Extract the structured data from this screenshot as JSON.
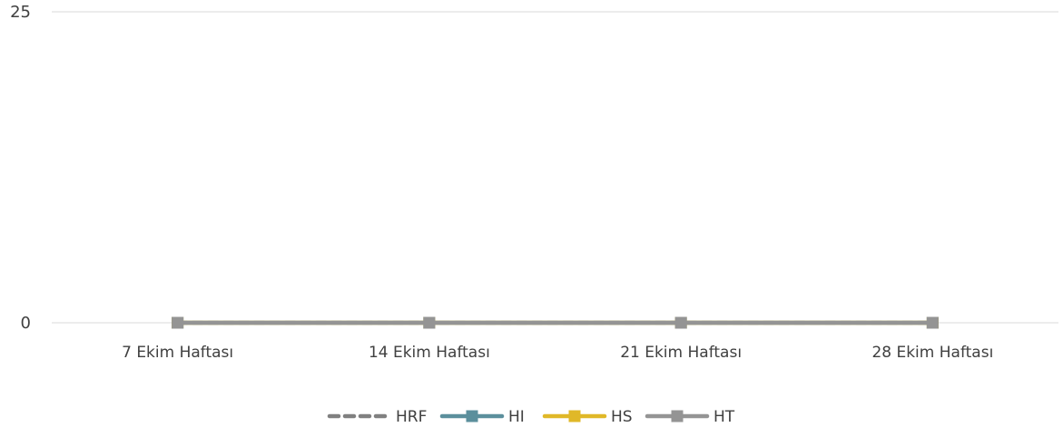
{
  "chart_data": {
    "type": "line",
    "categories": [
      "7 Ekim Haftası",
      "14 Ekim Haftası",
      "21 Ekim Haftası",
      "28 Ekim Haftası"
    ],
    "series": [
      {
        "name": "HRF",
        "values": [
          0,
          0,
          0,
          0
        ],
        "color": "#808080",
        "dash": true,
        "marker": false
      },
      {
        "name": "HI",
        "values": [
          0,
          0,
          0,
          0
        ],
        "color": "#5b8f9c",
        "dash": false,
        "marker": true
      },
      {
        "name": "HS",
        "values": [
          0,
          0,
          0,
          0
        ],
        "color": "#e0b828",
        "dash": false,
        "marker": true
      },
      {
        "name": "HT",
        "values": [
          0,
          0,
          0,
          0
        ],
        "color": "#949494",
        "dash": false,
        "marker": true
      }
    ],
    "yticks": [
      0,
      25
    ],
    "ylim": [
      0,
      25
    ],
    "grid": true,
    "legend_position": "bottom"
  }
}
